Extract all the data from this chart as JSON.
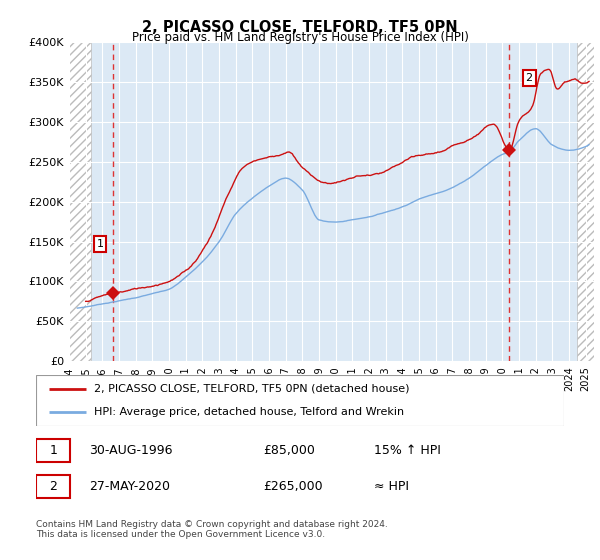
{
  "title": "2, PICASSO CLOSE, TELFORD, TF5 0PN",
  "subtitle": "Price paid vs. HM Land Registry's House Price Index (HPI)",
  "legend_line1": "2, PICASSO CLOSE, TELFORD, TF5 0PN (detached house)",
  "legend_line2": "HPI: Average price, detached house, Telford and Wrekin",
  "footnote": "Contains HM Land Registry data © Crown copyright and database right 2024.\nThis data is licensed under the Open Government Licence v3.0.",
  "sale1_date": "30-AUG-1996",
  "sale1_price": "£85,000",
  "sale1_hpi": "15% ↑ HPI",
  "sale2_date": "27-MAY-2020",
  "sale2_price": "£265,000",
  "sale2_hpi": "≈ HPI",
  "sale1_x": 1996.66,
  "sale1_y": 85000,
  "sale2_x": 2020.41,
  "sale2_y": 265000,
  "ylim": [
    0,
    400000
  ],
  "xlim": [
    1994.0,
    2025.5
  ],
  "ylabel_ticks": [
    0,
    50000,
    100000,
    150000,
    200000,
    250000,
    300000,
    350000,
    400000
  ],
  "xticks": [
    1994,
    1995,
    1996,
    1997,
    1998,
    1999,
    2000,
    2001,
    2002,
    2003,
    2004,
    2005,
    2006,
    2007,
    2008,
    2009,
    2010,
    2011,
    2012,
    2013,
    2014,
    2015,
    2016,
    2017,
    2018,
    2019,
    2020,
    2021,
    2022,
    2023,
    2024,
    2025
  ],
  "hpi_color": "#7aabe0",
  "price_color": "#cc1111",
  "bg_color": "#dce9f5",
  "grid_color": "#ffffff",
  "dashed_line_color": "#dd3333",
  "hatch_left_end": 1995.3,
  "hatch_right_start": 2024.5
}
